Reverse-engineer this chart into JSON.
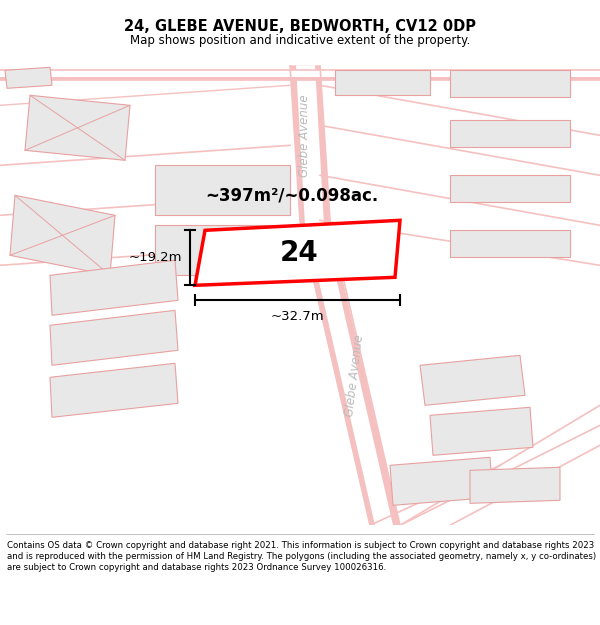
{
  "title": "24, GLEBE AVENUE, BEDWORTH, CV12 0DP",
  "subtitle": "Map shows position and indicative extent of the property.",
  "footer": "Contains OS data © Crown copyright and database right 2021. This information is subject to Crown copyright and database rights 2023 and is reproduced with the permission of HM Land Registry. The polygons (including the associated geometry, namely x, y co-ordinates) are subject to Crown copyright and database rights 2023 Ordnance Survey 100026316.",
  "background_color": "#ffffff",
  "road_color": "#f5c0c0",
  "road_white": "#ffffff",
  "building_outline_color": "#e8a0a0",
  "building_fill_color": "#e8e8e8",
  "highlight_color": "#ff0000",
  "highlight_fill": "#ffffff",
  "text_color": "#000000",
  "street_color": "#bbbbbb",
  "area_text": "~397m²/~0.098ac.",
  "label_text": "24",
  "dim_width": "~32.7m",
  "dim_height": "~19.2m",
  "street_label": "Glebe Avenue"
}
